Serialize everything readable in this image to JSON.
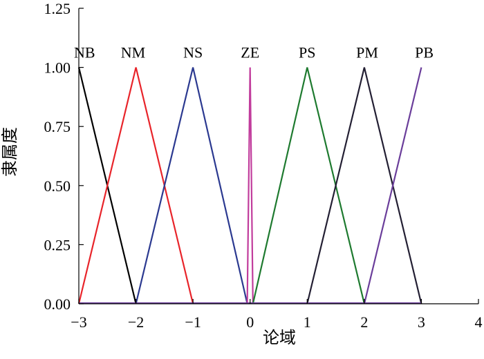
{
  "chart_data": {
    "type": "line",
    "title": "",
    "xlabel": "论域",
    "ylabel": "隶属度",
    "xlim": [
      -3,
      4
    ],
    "ylim": [
      0,
      1.25
    ],
    "xticks": [
      -3,
      -2,
      -1,
      0,
      1,
      2,
      3,
      4
    ],
    "xtick_labels": [
      "−3",
      "−2",
      "−1",
      "0",
      "1",
      "2",
      "3",
      "4"
    ],
    "yticks": [
      0,
      0.25,
      0.5,
      0.75,
      1.0,
      1.25
    ],
    "ytick_labels": [
      "0.00",
      "0.25",
      "0.50",
      "0.75",
      "1.00",
      "1.25"
    ],
    "grid": false,
    "series": [
      {
        "name": "NB",
        "color": "#000000",
        "points": [
          [
            -3,
            1
          ],
          [
            -2,
            0
          ]
        ],
        "label_at": [
          -2.9,
          1.03
        ]
      },
      {
        "name": "NM",
        "color": "#e8242a",
        "points": [
          [
            -3,
            0
          ],
          [
            -2,
            1
          ],
          [
            -1,
            0
          ]
        ],
        "label_at": [
          -2.05,
          1.03
        ]
      },
      {
        "name": "NS",
        "color": "#2b3990",
        "points": [
          [
            -2,
            0
          ],
          [
            -1,
            1
          ],
          [
            -0.05,
            0
          ]
        ],
        "label_at": [
          -1.0,
          1.03
        ]
      },
      {
        "name": "ZE",
        "color": "#c13c9c",
        "points": [
          [
            -0.05,
            0
          ],
          [
            0,
            1
          ],
          [
            0.05,
            0
          ]
        ],
        "label_at": [
          0.0,
          1.03
        ]
      },
      {
        "name": "PS",
        "color": "#1e7a2f",
        "points": [
          [
            0.05,
            0
          ],
          [
            1,
            1
          ],
          [
            2,
            0
          ]
        ],
        "label_at": [
          1.0,
          1.03
        ]
      },
      {
        "name": "PM",
        "color": "#231f33",
        "points": [
          [
            1,
            0
          ],
          [
            2,
            1
          ],
          [
            3,
            0
          ]
        ],
        "label_at": [
          2.05,
          1.03
        ]
      },
      {
        "name": "PB",
        "color": "#6a3d9a",
        "points": [
          [
            2,
            0
          ],
          [
            3,
            1
          ]
        ],
        "label_at": [
          3.05,
          1.03
        ]
      }
    ]
  }
}
